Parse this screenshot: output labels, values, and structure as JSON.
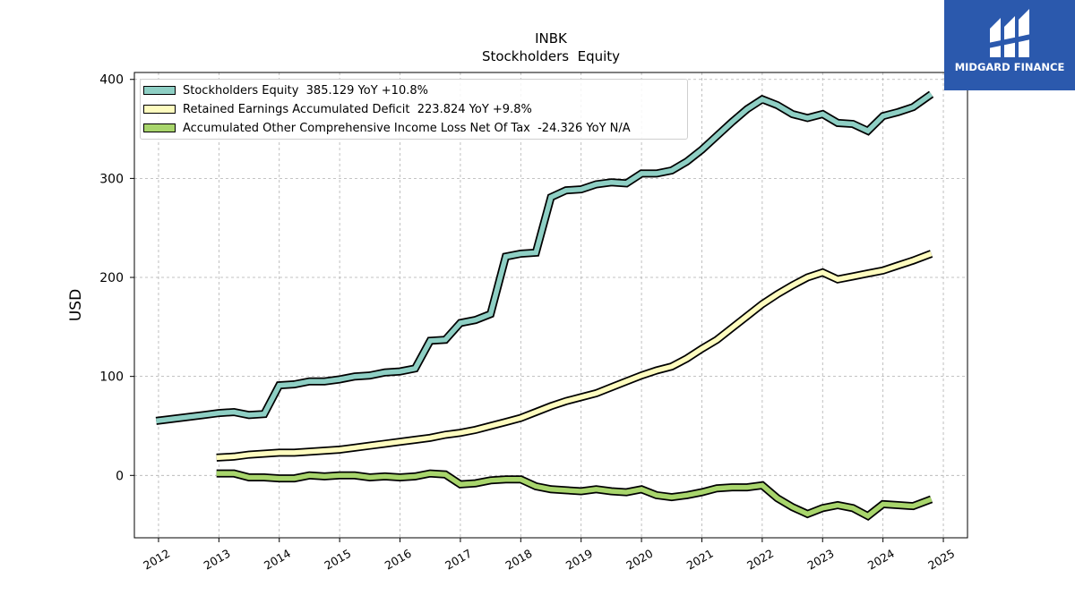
{
  "title": "INBK",
  "subtitle": "Stockholders  Equity",
  "logo": {
    "text": "MIDGARD FINANCE",
    "color": "#2b59ad",
    "icon": "midgard-logo-icon"
  },
  "chart_data": {
    "type": "line",
    "title": "INBK",
    "subtitle": "Stockholders  Equity",
    "xlabel": "",
    "ylabel": "USD",
    "xlim": [
      2011.6,
      2025.4
    ],
    "ylim": [
      -63,
      407
    ],
    "x_ticks": [
      2012,
      2013,
      2014,
      2015,
      2016,
      2017,
      2018,
      2019,
      2020,
      2021,
      2022,
      2023,
      2024,
      2025
    ],
    "y_ticks": [
      0,
      100,
      200,
      300,
      400
    ],
    "grid": true,
    "legend_position": "top-left",
    "series": [
      {
        "name": "Stockholders Equity  385.129 YoY +10.8%",
        "color": "#8ecfc4",
        "x": [
          2011.96,
          2012.75,
          2013.0,
          2013.25,
          2013.5,
          2013.75,
          2014.0,
          2014.25,
          2014.5,
          2014.75,
          2015.0,
          2015.25,
          2015.5,
          2015.75,
          2016.0,
          2016.25,
          2016.5,
          2016.75,
          2017.0,
          2017.25,
          2017.5,
          2017.75,
          2018.0,
          2018.25,
          2018.5,
          2018.75,
          2019.0,
          2019.25,
          2019.5,
          2019.75,
          2020.0,
          2020.25,
          2020.5,
          2020.75,
          2021.0,
          2021.25,
          2021.5,
          2021.75,
          2022.0,
          2022.25,
          2022.5,
          2022.75,
          2023.0,
          2023.25,
          2023.5,
          2023.75,
          2024.0,
          2024.25,
          2024.5,
          2024.8
        ],
        "values": [
          55,
          61,
          63,
          64,
          61,
          62,
          91,
          92,
          95,
          95,
          97,
          100,
          101,
          104,
          105,
          108,
          136,
          137,
          154,
          157,
          163,
          221,
          224,
          225,
          281,
          288,
          289,
          294,
          296,
          295,
          305,
          305,
          308,
          317,
          329,
          343,
          357,
          370,
          380,
          374,
          365,
          361,
          365,
          356,
          355,
          348,
          363,
          367,
          372,
          385
        ]
      },
      {
        "name": "Retained Earnings Accumulated Deficit  223.824 YoY +9.8%",
        "color": "#fefcbf",
        "x": [
          2012.96,
          2013.25,
          2013.5,
          2013.75,
          2014.0,
          2014.25,
          2014.5,
          2014.75,
          2015.0,
          2015.25,
          2015.5,
          2015.75,
          2016.0,
          2016.25,
          2016.5,
          2016.75,
          2017.0,
          2017.25,
          2017.5,
          2017.75,
          2018.0,
          2018.25,
          2018.5,
          2018.75,
          2019.0,
          2019.25,
          2019.5,
          2019.75,
          2020.0,
          2020.25,
          2020.5,
          2020.75,
          2021.0,
          2021.25,
          2021.5,
          2021.75,
          2022.0,
          2022.25,
          2022.5,
          2022.75,
          2023.0,
          2023.25,
          2023.5,
          2023.75,
          2024.0,
          2024.25,
          2024.5,
          2024.8
        ],
        "values": [
          18,
          19,
          21,
          22,
          23,
          23,
          24,
          25,
          26,
          28,
          30,
          32,
          34,
          36,
          38,
          41,
          43,
          46,
          50,
          54,
          58,
          64,
          70,
          75,
          79,
          83,
          89,
          95,
          101,
          106,
          110,
          118,
          128,
          137,
          149,
          161,
          173,
          183,
          192,
          200,
          205,
          198,
          201,
          204,
          207,
          212,
          217,
          224
        ]
      },
      {
        "name": "Accumulated Other Comprehensive Income Loss Net Of Tax  -24.326 YoY N/A",
        "color": "#a8d56c",
        "x": [
          2012.96,
          2013.25,
          2013.5,
          2013.75,
          2014.0,
          2014.25,
          2014.5,
          2014.75,
          2015.0,
          2015.25,
          2015.5,
          2015.75,
          2016.0,
          2016.25,
          2016.5,
          2016.75,
          2017.0,
          2017.25,
          2017.5,
          2017.75,
          2018.0,
          2018.25,
          2018.5,
          2018.75,
          2019.0,
          2019.25,
          2019.5,
          2019.75,
          2020.0,
          2020.25,
          2020.5,
          2020.75,
          2021.0,
          2021.25,
          2021.5,
          2021.75,
          2022.0,
          2022.25,
          2022.5,
          2022.75,
          2023.0,
          2023.25,
          2023.5,
          2023.75,
          2024.0,
          2024.25,
          2024.5,
          2024.8
        ],
        "values": [
          2,
          2,
          -2,
          -2,
          -3,
          -3,
          0,
          -1,
          0,
          0,
          -2,
          -1,
          -2,
          -1,
          2,
          1,
          -9,
          -8,
          -5,
          -4,
          -4,
          -11,
          -14,
          -15,
          -16,
          -14,
          -16,
          -17,
          -14,
          -20,
          -22,
          -20,
          -17,
          -13,
          -12,
          -12,
          -10,
          -23,
          -32,
          -39,
          -33,
          -30,
          -33,
          -41,
          -29,
          -30,
          -31,
          -24
        ]
      }
    ]
  }
}
